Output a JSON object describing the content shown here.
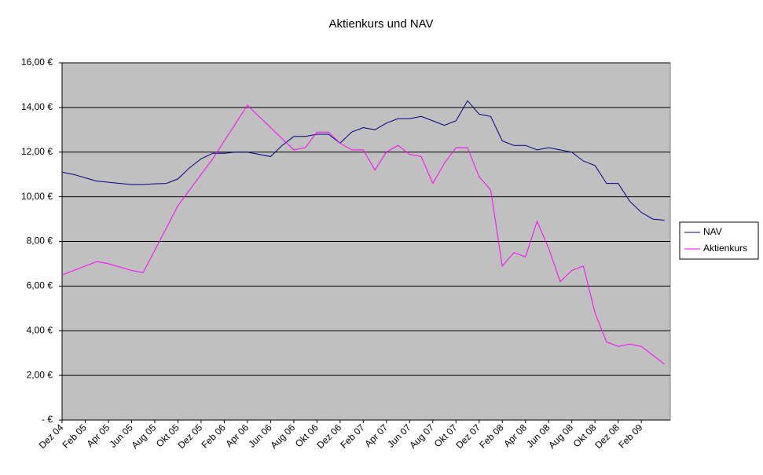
{
  "chart_data": {
    "type": "line",
    "title": "Aktienkurs und NAV",
    "categories": [
      "Dez 04",
      null,
      "Feb 05",
      null,
      "Apr 05",
      null,
      "Jun 05",
      null,
      "Aug 05",
      null,
      "Okt 05",
      null,
      "Dez 05",
      null,
      "Feb 06",
      null,
      "Apr 06",
      null,
      "Jun 06",
      null,
      "Aug 06",
      null,
      "Okt 06",
      null,
      "Dez 06",
      null,
      "Feb 07",
      null,
      "Apr 07",
      null,
      "Jun 07",
      null,
      "Aug 07",
      null,
      "Okt 07",
      null,
      "Dez 07",
      null,
      "Feb 08",
      null,
      "Apr 08",
      null,
      "Jun 08",
      null,
      "Aug 08",
      null,
      "Okt 08",
      null,
      "Dez 08",
      null,
      "Feb 09",
      null,
      null
    ],
    "series": [
      {
        "name": "NAV",
        "color": "#000080",
        "values": [
          11.1,
          11.0,
          10.85,
          10.7,
          10.65,
          10.6,
          10.55,
          10.55,
          10.58,
          10.6,
          10.8,
          11.3,
          11.7,
          11.95,
          11.95,
          12.0,
          12.0,
          11.9,
          11.8,
          12.3,
          12.7,
          12.7,
          12.8,
          12.8,
          12.4,
          12.9,
          13.1,
          13.0,
          13.3,
          13.5,
          13.5,
          13.6,
          13.4,
          13.2,
          13.4,
          14.3,
          13.7,
          13.6,
          12.5,
          12.3,
          12.3,
          12.1,
          12.2,
          12.1,
          12.0,
          11.6,
          11.4,
          10.6,
          10.6,
          9.8,
          9.3,
          9.0,
          8.95
        ]
      },
      {
        "name": "Aktienkurs",
        "color": "#ff00ff",
        "values": [
          6.5,
          6.7,
          6.9,
          7.1,
          7.0,
          6.85,
          6.7,
          6.6,
          7.6,
          8.6,
          9.6,
          10.3,
          11.0,
          11.7,
          12.5,
          13.3,
          14.1,
          13.6,
          13.1,
          12.6,
          12.1,
          12.2,
          12.9,
          12.9,
          12.4,
          12.1,
          12.1,
          11.2,
          12.0,
          12.3,
          11.9,
          11.8,
          10.6,
          11.5,
          12.2,
          12.2,
          10.9,
          10.3,
          6.9,
          7.5,
          7.3,
          8.9,
          7.7,
          6.2,
          6.7,
          6.9,
          4.8,
          3.5,
          3.3,
          3.4,
          3.3,
          2.9,
          2.5
        ]
      }
    ],
    "ylim": [
      0,
      16
    ],
    "yticks": [
      {
        "value": 0,
        "label": "-   €"
      },
      {
        "value": 2,
        "label": "2,00 €"
      },
      {
        "value": 4,
        "label": "4,00 €"
      },
      {
        "value": 6,
        "label": "6,00 €"
      },
      {
        "value": 8,
        "label": "8,00 €"
      },
      {
        "value": 10,
        "label": "10,00 €"
      },
      {
        "value": 12,
        "label": "12,00 €"
      },
      {
        "value": 14,
        "label": "14,00 €"
      },
      {
        "value": 16,
        "label": "16,00 €"
      }
    ],
    "grid": true,
    "legend": "right",
    "background": "#c0c0c0"
  }
}
